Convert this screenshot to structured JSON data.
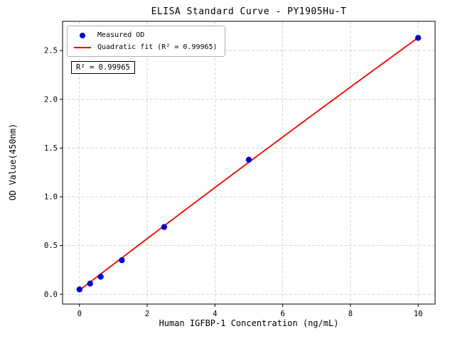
{
  "chart_data": {
    "type": "scatter",
    "title": "ELISA Standard Curve - PY1905Hu-T",
    "xlabel": "Human IGFBP-1 Concentration (ng/mL)",
    "ylabel": "OD Value(450nm)",
    "xlim": [
      -0.5,
      10.5
    ],
    "ylim": [
      -0.1,
      2.8
    ],
    "xticks": [
      0,
      2,
      4,
      6,
      8,
      10
    ],
    "xtick_labels": [
      "0",
      "2",
      "4",
      "6",
      "8",
      "10"
    ],
    "yticks": [
      0.0,
      0.5,
      1.0,
      1.5,
      2.0,
      2.5
    ],
    "ytick_labels": [
      "0.0",
      "0.5",
      "1.0",
      "1.5",
      "2.0",
      "2.5"
    ],
    "grid": true,
    "series": [
      {
        "name": "Measured OD",
        "type": "scatter",
        "color": "#0000cc",
        "x": [
          0,
          0.3125,
          0.625,
          1.25,
          2.5,
          5,
          10
        ],
        "y": [
          0.05,
          0.11,
          0.18,
          0.35,
          0.69,
          1.38,
          2.63
        ]
      },
      {
        "name": "Quadratic fit (R² = 0.99965)",
        "type": "line",
        "color": "#ee0000",
        "x_range": [
          0,
          10
        ],
        "fit_coefficients": {
          "c0": 0.042,
          "c1": 0.266,
          "c2": -0.0007
        }
      }
    ],
    "legend": {
      "position": "upper left",
      "items": [
        {
          "label": "Measured OD"
        },
        {
          "label": "Quadratic fit (R² = 0.99965)"
        }
      ]
    },
    "annotation": {
      "text": "R² = 0.99965"
    },
    "r_squared": 0.99965,
    "colors": {
      "grid": "#c9c9c9",
      "frame": "#000000",
      "marker": "#0000cc",
      "fit_line": "#ee0000"
    }
  }
}
